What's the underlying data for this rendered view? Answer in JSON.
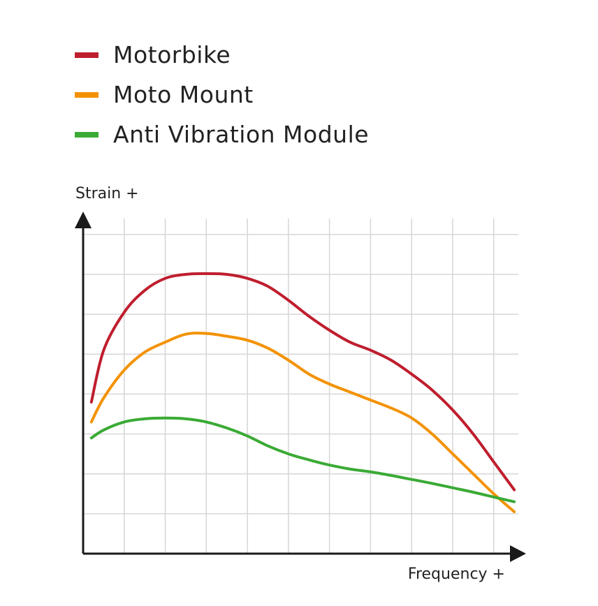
{
  "chart_data": {
    "type": "line",
    "xlabel": "Frequency +",
    "ylabel": "Strain +",
    "xlim": [
      0,
      10.6
    ],
    "ylim": [
      0,
      8.4
    ],
    "grid": true,
    "legend_position": "top-left",
    "series": [
      {
        "name": "Motorbike",
        "color": "#bf1e2e",
        "x": [
          0.2,
          0.5,
          1.0,
          1.5,
          2.0,
          2.5,
          3.0,
          3.5,
          4.0,
          4.5,
          5.0,
          5.5,
          6.0,
          6.5,
          7.0,
          7.5,
          8.0,
          8.5,
          9.0,
          9.5,
          10.0,
          10.5
        ],
        "y": [
          3.8,
          5.1,
          6.05,
          6.6,
          6.9,
          7.0,
          7.02,
          7.0,
          6.9,
          6.7,
          6.35,
          5.95,
          5.6,
          5.3,
          5.1,
          4.85,
          4.5,
          4.1,
          3.6,
          3.0,
          2.3,
          1.6
        ]
      },
      {
        "name": "Moto Mount",
        "color": "#f39200",
        "x": [
          0.2,
          0.5,
          1.0,
          1.5,
          2.0,
          2.5,
          3.0,
          3.5,
          4.0,
          4.5,
          5.0,
          5.5,
          6.0,
          6.5,
          7.0,
          7.5,
          8.0,
          8.5,
          9.0,
          9.5,
          10.0,
          10.5
        ],
        "y": [
          3.3,
          3.9,
          4.6,
          5.05,
          5.3,
          5.5,
          5.52,
          5.45,
          5.35,
          5.15,
          4.85,
          4.5,
          4.25,
          4.05,
          3.85,
          3.65,
          3.4,
          3.0,
          2.5,
          2.0,
          1.5,
          1.05
        ]
      },
      {
        "name": "Anti Vibration Module",
        "color": "#3aaa35",
        "x": [
          0.2,
          0.5,
          1.0,
          1.5,
          2.0,
          2.5,
          3.0,
          3.5,
          4.0,
          4.5,
          5.0,
          5.5,
          6.0,
          6.5,
          7.0,
          7.5,
          8.0,
          8.5,
          9.0,
          9.5,
          10.0,
          10.5
        ],
        "y": [
          2.9,
          3.1,
          3.3,
          3.38,
          3.4,
          3.38,
          3.3,
          3.15,
          2.95,
          2.7,
          2.5,
          2.35,
          2.22,
          2.12,
          2.05,
          1.96,
          1.86,
          1.76,
          1.65,
          1.54,
          1.42,
          1.3
        ]
      }
    ]
  }
}
